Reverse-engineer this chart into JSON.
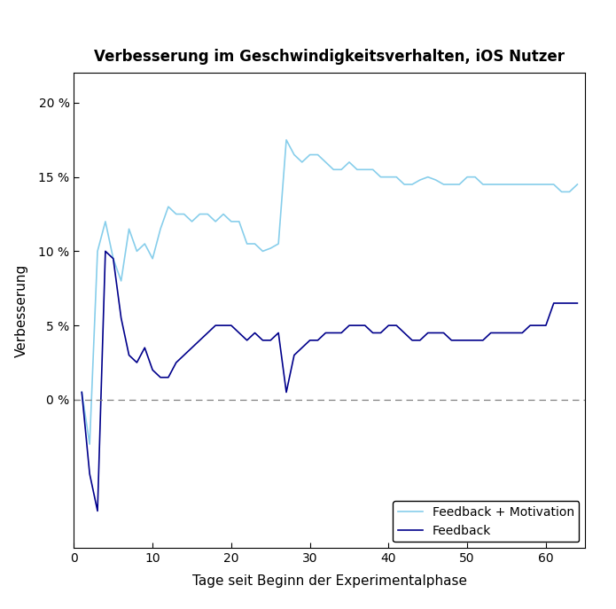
{
  "title": "Verbesserung im Geschwindigkeitsverhalten, iOS Nutzer",
  "xlabel": "Tage seit Beginn der Experimentalphase",
  "ylabel": "Verbesserung",
  "xlim": [
    0,
    65
  ],
  "ylim": [
    -10,
    22
  ],
  "yticks": [
    0,
    5,
    10,
    15,
    20
  ],
  "xticks": [
    0,
    10,
    20,
    30,
    40,
    50,
    60
  ],
  "color_fm": "#87CEEB",
  "color_f": "#00008B",
  "legend_labels": [
    "Feedback + Motivation",
    "Feedback"
  ],
  "fm_x": [
    1,
    2,
    3,
    4,
    5,
    6,
    7,
    8,
    9,
    10,
    11,
    12,
    13,
    14,
    15,
    16,
    17,
    18,
    19,
    20,
    21,
    22,
    23,
    24,
    25,
    26,
    27,
    28,
    29,
    30,
    31,
    32,
    33,
    34,
    35,
    36,
    37,
    38,
    39,
    40,
    41,
    42,
    43,
    44,
    45,
    46,
    47,
    48,
    49,
    50,
    51,
    52,
    53,
    54,
    55,
    56,
    57,
    58,
    59,
    60,
    61,
    62,
    63,
    64
  ],
  "fm_y": [
    0.5,
    -3.0,
    10.0,
    12.0,
    9.5,
    8.0,
    11.5,
    10.0,
    10.5,
    9.5,
    11.5,
    13.0,
    12.5,
    12.5,
    12.0,
    12.5,
    12.5,
    12.0,
    12.5,
    12.0,
    12.0,
    10.5,
    10.5,
    10.0,
    10.2,
    10.5,
    17.5,
    16.5,
    16.0,
    16.5,
    16.5,
    16.0,
    15.5,
    15.5,
    16.0,
    15.5,
    15.5,
    15.5,
    15.0,
    15.0,
    15.0,
    14.5,
    14.5,
    14.8,
    15.0,
    14.8,
    14.5,
    14.5,
    14.5,
    15.0,
    15.0,
    14.5,
    14.5,
    14.5,
    14.5,
    14.5,
    14.5,
    14.5,
    14.5,
    14.5,
    14.5,
    14.0,
    14.0,
    14.5
  ],
  "f_x": [
    1,
    2,
    3,
    4,
    5,
    6,
    7,
    8,
    9,
    10,
    11,
    12,
    13,
    14,
    15,
    16,
    17,
    18,
    19,
    20,
    21,
    22,
    23,
    24,
    25,
    26,
    27,
    28,
    29,
    30,
    31,
    32,
    33,
    34,
    35,
    36,
    37,
    38,
    39,
    40,
    41,
    42,
    43,
    44,
    45,
    46,
    47,
    48,
    49,
    50,
    51,
    52,
    53,
    54,
    55,
    56,
    57,
    58,
    59,
    60,
    61,
    62,
    63,
    64
  ],
  "f_y": [
    0.5,
    -5.0,
    -7.5,
    10.0,
    9.5,
    5.5,
    3.0,
    2.5,
    3.5,
    2.0,
    1.5,
    1.5,
    2.5,
    3.0,
    3.5,
    4.0,
    4.5,
    5.0,
    5.0,
    5.0,
    4.5,
    4.0,
    4.5,
    4.0,
    4.0,
    4.5,
    0.5,
    3.0,
    3.5,
    4.0,
    4.0,
    4.5,
    4.5,
    4.5,
    5.0,
    5.0,
    5.0,
    4.5,
    4.5,
    5.0,
    5.0,
    4.5,
    4.0,
    4.0,
    4.5,
    4.5,
    4.5,
    4.0,
    4.0,
    4.0,
    4.0,
    4.0,
    4.5,
    4.5,
    4.5,
    4.5,
    4.5,
    5.0,
    5.0,
    5.0,
    6.5,
    6.5,
    6.5,
    6.5
  ]
}
